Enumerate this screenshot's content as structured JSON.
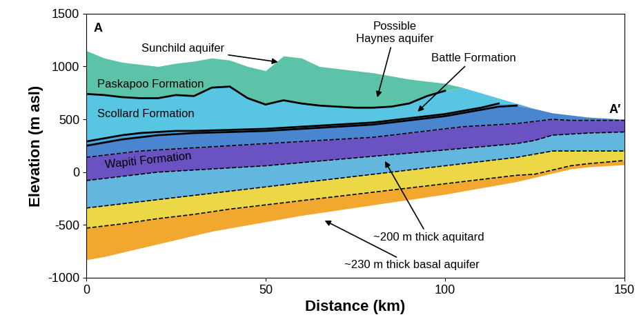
{
  "chart_data": {
    "type": "area",
    "xlabel": "Distance (km)",
    "ylabel": "Elevation (m asl)",
    "xlim": [
      0,
      150
    ],
    "xticks": [
      0,
      50,
      100,
      150
    ],
    "ylim": [
      -1000,
      1500
    ],
    "yticks": [
      -1000,
      -500,
      0,
      500,
      1000,
      1500
    ],
    "x": [
      0,
      5,
      10,
      15,
      20,
      25,
      30,
      35,
      40,
      45,
      50,
      55,
      60,
      65,
      70,
      75,
      80,
      85,
      90,
      95,
      100,
      105,
      110,
      115,
      120,
      125,
      130,
      135,
      140,
      145,
      150
    ],
    "boundaries": [
      {
        "line_style": "none",
        "values": [
          1150,
          1080,
          1040,
          1020,
          1000,
          1030,
          1050,
          1080,
          1060,
          1000,
          960,
          1100,
          1080,
          1000,
          980,
          960,
          940,
          910,
          880,
          860,
          840,
          800,
          750,
          700,
          650,
          600,
          560,
          540,
          520,
          510,
          500
        ]
      },
      {
        "line_style": "solid",
        "values": [
          740,
          730,
          710,
          700,
          700,
          730,
          720,
          800,
          810,
          700,
          640,
          680,
          650,
          630,
          620,
          610,
          610,
          620,
          650,
          720,
          770,
          null,
          null,
          null,
          null,
          null,
          null,
          null,
          null,
          null,
          null
        ]
      },
      {
        "line_style": "solid",
        "values": [
          290,
          320,
          350,
          370,
          380,
          390,
          390,
          395,
          400,
          405,
          410,
          420,
          430,
          440,
          450,
          460,
          470,
          490,
          510,
          530,
          550,
          580,
          610,
          650,
          null,
          null,
          null,
          null,
          null,
          null,
          null
        ]
      },
      {
        "line_style": "solid",
        "values": [
          250,
          280,
          310,
          330,
          350,
          360,
          370,
          375,
          380,
          385,
          390,
          400,
          410,
          420,
          430,
          440,
          450,
          470,
          490,
          510,
          530,
          560,
          590,
          620,
          630,
          null,
          null,
          null,
          null,
          null,
          null
        ]
      },
      {
        "line_style": "dashed",
        "values": [
          140,
          160,
          180,
          200,
          210,
          220,
          230,
          240,
          250,
          260,
          270,
          280,
          290,
          300,
          310,
          320,
          330,
          350,
          370,
          390,
          410,
          430,
          440,
          450,
          460,
          480,
          500,
          490,
          490,
          490,
          490
        ]
      },
      {
        "line_style": "dashed",
        "values": [
          -80,
          -60,
          -40,
          -20,
          0,
          10,
          20,
          30,
          40,
          50,
          60,
          75,
          90,
          105,
          120,
          135,
          150,
          165,
          180,
          195,
          210,
          225,
          240,
          255,
          270,
          300,
          350,
          360,
          370,
          375,
          380
        ]
      },
      {
        "line_style": "dashed",
        "values": [
          -340,
          -320,
          -300,
          -280,
          -260,
          -240,
          -220,
          -200,
          -180,
          -160,
          -140,
          -120,
          -100,
          -80,
          -60,
          -40,
          -20,
          0,
          20,
          40,
          60,
          80,
          100,
          120,
          140,
          170,
          200,
          200,
          200,
          200,
          200
        ]
      },
      {
        "line_style": "dashed",
        "values": [
          -530,
          -510,
          -490,
          -465,
          -440,
          -420,
          -400,
          -375,
          -350,
          -330,
          -310,
          -290,
          -270,
          -250,
          -230,
          -210,
          -190,
          -170,
          -150,
          -130,
          -110,
          -90,
          -70,
          -50,
          -30,
          -20,
          20,
          60,
          80,
          95,
          110
        ]
      },
      {
        "line_style": "none",
        "values": [
          -830,
          -800,
          -760,
          -720,
          -680,
          -640,
          -600,
          -560,
          -530,
          -500,
          -470,
          -440,
          -410,
          -385,
          -360,
          -335,
          -310,
          -285,
          -260,
          -235,
          -210,
          -180,
          -150,
          -120,
          -90,
          -50,
          -10,
          30,
          50,
          60,
          70
        ]
      }
    ],
    "colors": [
      "#5cc2a8",
      "#58c6e2",
      "#4fa6da",
      "#4a86d0",
      "#6a52c2",
      "#63b6de",
      "#ecd846",
      "#f2a72e"
    ],
    "annotations": [
      "A",
      "A′",
      "Sunchild aquifer",
      "Possible\nHaynes aquifer",
      "Battle Formation",
      "Paskapoo Formation",
      "Scollard Formation",
      "Wapiti Formation",
      "~200 m thick aquitard",
      "~230 m thick basal aquifer"
    ]
  }
}
